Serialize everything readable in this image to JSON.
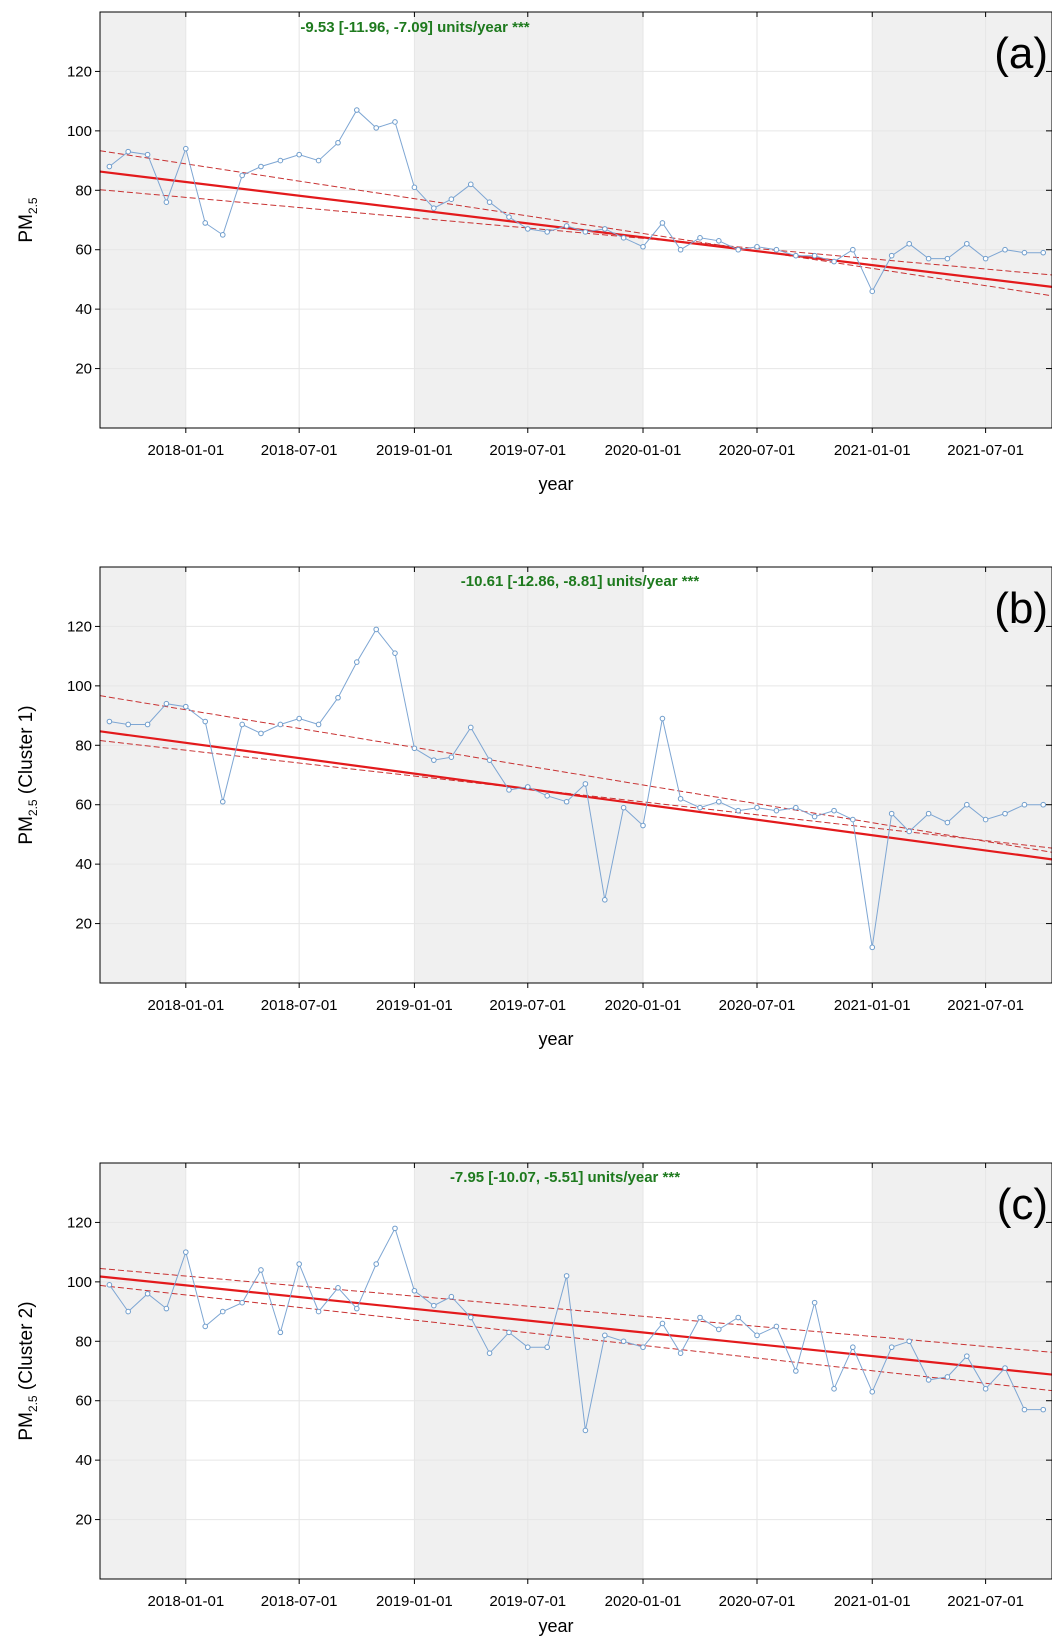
{
  "chart_data": [
    {
      "type": "line",
      "panel_label": "(a)",
      "trend_text": "-9.53 [-11.96, -7.09] units/year ***",
      "ylabel_main": "PM",
      "ylabel_sub": "2.5",
      "ylabel_suffix": "",
      "xlabel": "year",
      "ylim": [
        0,
        140
      ],
      "yticks": [
        20,
        40,
        60,
        80,
        100,
        120
      ],
      "xrange": [
        "2017-08-17",
        "2021-10-15"
      ],
      "xticks": [
        "2018-01-01",
        "2018-07-01",
        "2019-01-01",
        "2019-07-01",
        "2020-01-01",
        "2020-07-01",
        "2021-01-01",
        "2021-07-01"
      ],
      "shaded_years": [
        [
          "2017-01-01",
          "2018-01-01"
        ],
        [
          "2019-01-01",
          "2020-01-01"
        ],
        [
          "2021-01-01",
          "2022-01-01"
        ]
      ],
      "x": [
        "2017-09-01",
        "2017-10-01",
        "2017-11-01",
        "2017-12-01",
        "2018-01-01",
        "2018-02-01",
        "2018-03-01",
        "2018-04-01",
        "2018-05-01",
        "2018-06-01",
        "2018-07-01",
        "2018-08-01",
        "2018-09-01",
        "2018-10-01",
        "2018-11-01",
        "2018-12-01",
        "2019-01-01",
        "2019-02-01",
        "2019-03-01",
        "2019-04-01",
        "2019-05-01",
        "2019-06-01",
        "2019-07-01",
        "2019-08-01",
        "2019-09-01",
        "2019-10-01",
        "2019-11-01",
        "2019-12-01",
        "2020-01-01",
        "2020-02-01",
        "2020-03-01",
        "2020-04-01",
        "2020-05-01",
        "2020-06-01",
        "2020-07-01",
        "2020-08-01",
        "2020-09-01",
        "2020-10-01",
        "2020-11-01",
        "2020-12-01",
        "2021-01-01",
        "2021-02-01",
        "2021-03-01",
        "2021-04-01",
        "2021-05-01",
        "2021-06-01",
        "2021-07-01",
        "2021-08-01",
        "2021-09-01",
        "2021-10-01"
      ],
      "values": [
        88,
        93,
        92,
        76,
        94,
        69,
        65,
        85,
        88,
        90,
        92,
        90,
        96,
        107,
        101,
        103,
        81,
        74,
        77,
        82,
        76,
        71,
        67,
        66,
        68,
        66,
        67,
        64,
        61,
        69,
        60,
        64,
        63,
        60,
        61,
        60,
        58,
        58,
        56,
        60,
        46,
        58,
        62,
        57,
        57,
        62,
        57,
        60,
        59,
        59
      ],
      "trend": {
        "start": [
          "2017-08-17",
          86.3
        ],
        "end": [
          "2021-10-15",
          47.5
        ]
      },
      "upper": {
        "start": [
          "2017-08-17",
          93.3
        ],
        "end": [
          "2021-10-15",
          44.5
        ]
      },
      "lower": {
        "start": [
          "2017-08-17",
          80.2
        ],
        "end": [
          "2021-10-15",
          51.5
        ]
      }
    },
    {
      "type": "line",
      "panel_label": "(b)",
      "trend_text": "-10.61 [-12.86, -8.81] units/year ***",
      "ylabel_main": "PM",
      "ylabel_sub": "2.5",
      "ylabel_suffix": " (Cluster 1)",
      "xlabel": "year",
      "ylim": [
        0,
        140
      ],
      "yticks": [
        20,
        40,
        60,
        80,
        100,
        120
      ],
      "xrange": [
        "2017-08-17",
        "2021-10-15"
      ],
      "xticks": [
        "2018-01-01",
        "2018-07-01",
        "2019-01-01",
        "2019-07-01",
        "2020-01-01",
        "2020-07-01",
        "2021-01-01",
        "2021-07-01"
      ],
      "shaded_years": [
        [
          "2017-01-01",
          "2018-01-01"
        ],
        [
          "2019-01-01",
          "2020-01-01"
        ],
        [
          "2021-01-01",
          "2022-01-01"
        ]
      ],
      "x": [
        "2017-09-01",
        "2017-10-01",
        "2017-11-01",
        "2017-12-01",
        "2018-01-01",
        "2018-02-01",
        "2018-03-01",
        "2018-04-01",
        "2018-05-01",
        "2018-06-01",
        "2018-07-01",
        "2018-08-01",
        "2018-09-01",
        "2018-10-01",
        "2018-11-01",
        "2018-12-01",
        "2019-01-01",
        "2019-02-01",
        "2019-03-01",
        "2019-04-01",
        "2019-05-01",
        "2019-06-01",
        "2019-07-01",
        "2019-08-01",
        "2019-09-01",
        "2019-10-01",
        "2019-11-01",
        "2019-12-01",
        "2020-01-01",
        "2020-02-01",
        "2020-03-01",
        "2020-04-01",
        "2020-05-01",
        "2020-06-01",
        "2020-07-01",
        "2020-08-01",
        "2020-09-01",
        "2020-10-01",
        "2020-11-01",
        "2020-12-01",
        "2021-01-01",
        "2021-02-01",
        "2021-03-01",
        "2021-04-01",
        "2021-05-01",
        "2021-06-01",
        "2021-07-01",
        "2021-08-01",
        "2021-09-01",
        "2021-10-01"
      ],
      "values": [
        88,
        87,
        87,
        94,
        93,
        88,
        61,
        87,
        84,
        87,
        89,
        87,
        96,
        108,
        119,
        111,
        79,
        75,
        76,
        86,
        75,
        65,
        66,
        63,
        61,
        67,
        28,
        59,
        53,
        89,
        62,
        59,
        61,
        58,
        59,
        58,
        59,
        56,
        58,
        55,
        12,
        57,
        51,
        57,
        54,
        60,
        55,
        57,
        60,
        60
      ],
      "trend": {
        "start": [
          "2017-08-17",
          84.7
        ],
        "end": [
          "2021-10-15",
          41.6
        ]
      },
      "upper": {
        "start": [
          "2017-08-17",
          96.7
        ],
        "end": [
          "2021-10-15",
          44.0
        ]
      },
      "lower": {
        "start": [
          "2017-08-17",
          81.6
        ],
        "end": [
          "2021-10-15",
          45.4
        ]
      }
    },
    {
      "type": "line",
      "panel_label": "(c)",
      "trend_text": "-7.95 [-10.07, -5.51] units/year ***",
      "ylabel_main": "PM",
      "ylabel_sub": "2.5",
      "ylabel_suffix": " (Cluster 2)",
      "xlabel": "year",
      "ylim": [
        0,
        140
      ],
      "yticks": [
        20,
        40,
        60,
        80,
        100,
        120
      ],
      "xrange": [
        "2017-08-17",
        "2021-10-15"
      ],
      "xticks": [
        "2018-01-01",
        "2018-07-01",
        "2019-01-01",
        "2019-07-01",
        "2020-01-01",
        "2020-07-01",
        "2021-01-01",
        "2021-07-01"
      ],
      "shaded_years": [
        [
          "2017-01-01",
          "2018-01-01"
        ],
        [
          "2019-01-01",
          "2020-01-01"
        ],
        [
          "2021-01-01",
          "2022-01-01"
        ]
      ],
      "x": [
        "2017-09-01",
        "2017-10-01",
        "2017-11-01",
        "2017-12-01",
        "2018-01-01",
        "2018-02-01",
        "2018-03-01",
        "2018-04-01",
        "2018-05-01",
        "2018-06-01",
        "2018-07-01",
        "2018-08-01",
        "2018-09-01",
        "2018-10-01",
        "2018-11-01",
        "2018-12-01",
        "2019-01-01",
        "2019-02-01",
        "2019-03-01",
        "2019-04-01",
        "2019-05-01",
        "2019-06-01",
        "2019-07-01",
        "2019-08-01",
        "2019-09-01",
        "2019-10-01",
        "2019-11-01",
        "2019-12-01",
        "2020-01-01",
        "2020-02-01",
        "2020-03-01",
        "2020-04-01",
        "2020-05-01",
        "2020-06-01",
        "2020-07-01",
        "2020-08-01",
        "2020-09-01",
        "2020-10-01",
        "2020-11-01",
        "2020-12-01",
        "2021-01-01",
        "2021-02-01",
        "2021-03-01",
        "2021-04-01",
        "2021-05-01",
        "2021-06-01",
        "2021-07-01",
        "2021-08-01",
        "2021-09-01",
        "2021-10-01"
      ],
      "values": [
        99,
        90,
        96,
        91,
        110,
        85,
        90,
        93,
        104,
        83,
        106,
        90,
        98,
        91,
        106,
        118,
        97,
        92,
        95,
        88,
        76,
        83,
        78,
        78,
        102,
        50,
        82,
        80,
        78,
        86,
        76,
        88,
        84,
        88,
        82,
        85,
        70,
        93,
        64,
        78,
        63,
        78,
        80,
        67,
        68,
        75,
        64,
        71,
        57,
        57
      ],
      "trend": {
        "start": [
          "2017-08-17",
          101.8
        ],
        "end": [
          "2021-10-15",
          68.8
        ]
      },
      "upper": {
        "start": [
          "2017-08-17",
          104.5
        ],
        "end": [
          "2021-10-15",
          76.3
        ]
      },
      "lower": {
        "start": [
          "2017-08-17",
          98.8
        ],
        "end": [
          "2021-10-15",
          63.4
        ]
      }
    }
  ],
  "colors": {
    "observed_line": "#7ea6d3",
    "observed_point": "#6f9dcc",
    "trend_line": "#e31a1c",
    "ci_line": "#c83232",
    "annotation": "#1e7a1e",
    "shade": "#f0f0f0",
    "grid": "#e6e6e6",
    "axis": "#000000"
  }
}
